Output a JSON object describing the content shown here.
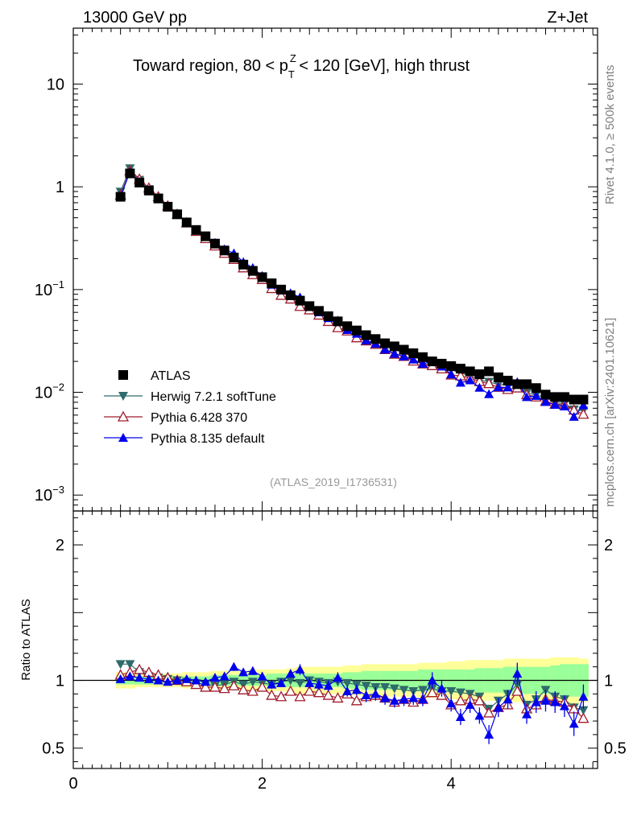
{
  "header": {
    "energy_label": "13000 GeV pp",
    "process_label": "Z+Jet",
    "title": "Toward region, 80 < p",
    "title_sup": "Z",
    "title_sub": "T",
    "title_end": " < 120 [GeV], high thrust",
    "rivet_label": "Rivet 4.1.0, ≥ 500k events",
    "mcplots_label": "mcplots.cern.ch [arXiv:2401.10621]",
    "analysis_label": "(ATLAS_2019_I1736531)"
  },
  "legend": [
    {
      "label": "ATLAS",
      "color": "#000000",
      "marker": "square"
    },
    {
      "label": "Herwig 7.2.1 softTune",
      "color": "#2f6b6b",
      "marker": "triangle-down"
    },
    {
      "label": "Pythia 6.428 370",
      "color": "#a01c2c",
      "marker": "triangle-up-open"
    },
    {
      "label": "Pythia 8.135 default",
      "color": "#0000ee",
      "marker": "triangle-up"
    }
  ],
  "chart_data": {
    "type": "scatter",
    "main": {
      "yscale": "log",
      "ylim": [
        0.0007,
        35
      ],
      "xlim": [
        0,
        5.55
      ],
      "yticks": [
        {
          "value": 0.001,
          "base": "10",
          "exp": "−3"
        },
        {
          "value": 0.01,
          "base": "10",
          "exp": "−2"
        },
        {
          "value": 0.1,
          "base": "10",
          "exp": "−1"
        },
        {
          "value": 1,
          "base": "1",
          "exp": ""
        },
        {
          "value": 10,
          "base": "10",
          "exp": ""
        }
      ]
    },
    "ratio": {
      "ylabel": "Ratio to ATLAS",
      "ylim": [
        0.35,
        2.25
      ],
      "yticks": [
        "0.5",
        "1",
        "2"
      ],
      "ytick_values": [
        0.5,
        1,
        2
      ]
    },
    "xticks": [
      "0",
      "2",
      "4"
    ],
    "xtick_values": [
      0,
      2,
      4
    ],
    "x": [
      0.5,
      0.6,
      0.7,
      0.8,
      0.9,
      1.0,
      1.1,
      1.2,
      1.3,
      1.4,
      1.5,
      1.6,
      1.7,
      1.8,
      1.9,
      2.0,
      2.1,
      2.2,
      2.3,
      2.4,
      2.5,
      2.6,
      2.7,
      2.8,
      2.9,
      3.0,
      3.1,
      3.2,
      3.3,
      3.4,
      3.5,
      3.6,
      3.7,
      3.8,
      3.9,
      4.0,
      4.1,
      4.2,
      4.3,
      4.4,
      4.5,
      4.6,
      4.7,
      4.8,
      4.9,
      5.0,
      5.1,
      5.2,
      5.3,
      5.4
    ],
    "series": [
      {
        "name": "ATLAS",
        "values": [
          0.8,
          1.35,
          1.1,
          0.92,
          0.77,
          0.64,
          0.54,
          0.45,
          0.38,
          0.33,
          0.28,
          0.24,
          0.205,
          0.175,
          0.152,
          0.132,
          0.115,
          0.1,
          0.088,
          0.078,
          0.069,
          0.062,
          0.055,
          0.049,
          0.044,
          0.04,
          0.036,
          0.033,
          0.03,
          0.028,
          0.026,
          0.024,
          0.022,
          0.02,
          0.019,
          0.018,
          0.017,
          0.016,
          0.015,
          0.016,
          0.014,
          0.013,
          0.012,
          0.012,
          0.011,
          0.0095,
          0.009,
          0.009,
          0.0085,
          0.0085
        ]
      },
      {
        "name": "Herwig 7.2.1 softTune",
        "ratio": [
          1.12,
          1.12,
          1.06,
          1.03,
          1.02,
          1.01,
          1.0,
          0.99,
          0.98,
          0.97,
          0.96,
          0.97,
          0.99,
          0.97,
          0.99,
          0.98,
          0.97,
          0.99,
          1.0,
          0.98,
          1.0,
          0.99,
          0.98,
          0.99,
          0.98,
          0.97,
          0.96,
          0.95,
          0.95,
          0.94,
          0.93,
          0.92,
          0.93,
          0.94,
          0.92,
          0.92,
          0.91,
          0.9,
          0.88,
          0.79,
          0.85,
          0.9,
          0.97,
          0.82,
          0.86,
          0.93,
          0.88,
          0.86,
          0.8,
          0.78
        ]
      },
      {
        "name": "Pythia 6.428 370",
        "ratio": [
          1.04,
          1.06,
          1.08,
          1.06,
          1.04,
          1.02,
          1.0,
          0.99,
          0.97,
          0.95,
          0.95,
          0.94,
          0.96,
          0.93,
          0.92,
          0.95,
          0.89,
          0.88,
          0.92,
          0.88,
          0.92,
          0.91,
          0.89,
          0.87,
          0.9,
          0.85,
          0.88,
          0.89,
          0.87,
          0.84,
          0.86,
          0.84,
          0.86,
          0.91,
          0.89,
          0.82,
          0.85,
          0.86,
          0.85,
          0.76,
          0.8,
          0.82,
          0.92,
          0.79,
          0.82,
          0.86,
          0.85,
          0.84,
          0.79,
          0.72
        ]
      },
      {
        "name": "Pythia 8.135 default",
        "ratio": [
          1.01,
          1.03,
          1.02,
          1.01,
          1.0,
          0.99,
          1.0,
          1.01,
          1.0,
          0.99,
          1.02,
          1.03,
          1.1,
          1.06,
          1.07,
          1.03,
          0.97,
          0.98,
          1.05,
          1.08,
          0.98,
          0.97,
          0.96,
          1.02,
          0.92,
          0.93,
          0.89,
          0.9,
          0.87,
          0.85,
          0.86,
          0.87,
          0.86,
          1.0,
          0.94,
          0.83,
          0.73,
          0.82,
          0.74,
          0.6,
          0.8,
          0.86,
          1.05,
          0.75,
          0.84,
          0.85,
          0.84,
          0.81,
          0.68,
          0.88
        ]
      }
    ],
    "ratio_errors_p8": [
      0.02,
      0.02,
      0.02,
      0.02,
      0.02,
      0.02,
      0.02,
      0.02,
      0.02,
      0.02,
      0.03,
      0.03,
      0.03,
      0.03,
      0.03,
      0.03,
      0.03,
      0.03,
      0.03,
      0.04,
      0.04,
      0.04,
      0.04,
      0.04,
      0.04,
      0.04,
      0.05,
      0.05,
      0.05,
      0.05,
      0.05,
      0.05,
      0.05,
      0.06,
      0.06,
      0.06,
      0.06,
      0.06,
      0.06,
      0.07,
      0.07,
      0.07,
      0.08,
      0.07,
      0.08,
      0.08,
      0.08,
      0.08,
      0.09,
      0.09
    ],
    "band_inner": [
      0.03,
      0.03,
      0.03,
      0.03,
      0.03,
      0.03,
      0.03,
      0.03,
      0.03,
      0.03,
      0.04,
      0.04,
      0.04,
      0.04,
      0.04,
      0.04,
      0.05,
      0.05,
      0.05,
      0.05,
      0.05,
      0.05,
      0.05,
      0.05,
      0.06,
      0.06,
      0.07,
      0.07,
      0.07,
      0.07,
      0.07,
      0.07,
      0.08,
      0.08,
      0.08,
      0.08,
      0.08,
      0.08,
      0.09,
      0.09,
      0.09,
      0.1,
      0.1,
      0.1,
      0.1,
      0.1,
      0.11,
      0.12,
      0.12,
      0.12
    ],
    "band_outer": [
      0.06,
      0.06,
      0.05,
      0.05,
      0.05,
      0.05,
      0.05,
      0.06,
      0.06,
      0.06,
      0.07,
      0.07,
      0.07,
      0.07,
      0.08,
      0.08,
      0.08,
      0.08,
      0.09,
      0.1,
      0.1,
      0.1,
      0.1,
      0.1,
      0.11,
      0.11,
      0.12,
      0.12,
      0.12,
      0.12,
      0.12,
      0.12,
      0.13,
      0.13,
      0.13,
      0.14,
      0.14,
      0.15,
      0.15,
      0.15,
      0.15,
      0.16,
      0.16,
      0.16,
      0.16,
      0.16,
      0.17,
      0.17,
      0.17,
      0.16
    ]
  }
}
